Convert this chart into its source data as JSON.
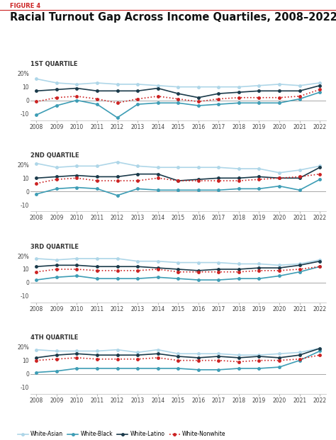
{
  "title": "Racial Turnout Gap Across Income Quartiles, 2008–2022",
  "figure_label": "FIGURE 4",
  "quartile_labels": [
    "1ST QUARTILE",
    "2ND QUARTILE",
    "3RD QUARTILE",
    "4TH QUARTILE"
  ],
  "years": [
    2008,
    2009,
    2010,
    2011,
    2012,
    2013,
    2014,
    2015,
    2016,
    2017,
    2018,
    2019,
    2020,
    2021,
    2022
  ],
  "series": {
    "White-Asian": {
      "color": "#aed6e8",
      "linestyle": "-",
      "marker": "o",
      "markersize": 2.5,
      "linewidth": 1.2,
      "q1": [
        16,
        13,
        12,
        13,
        12,
        12,
        11,
        10,
        10,
        10,
        10,
        11,
        12,
        11,
        13
      ],
      "q2": [
        21,
        18,
        19,
        19,
        22,
        19,
        18,
        18,
        18,
        18,
        17,
        17,
        14,
        16,
        19
      ],
      "q3": [
        18,
        17,
        18,
        18,
        18,
        16,
        16,
        15,
        15,
        15,
        14,
        14,
        13,
        14,
        17
      ],
      "q4": [
        18,
        17,
        17,
        17,
        18,
        16,
        18,
        15,
        15,
        15,
        14,
        14,
        15,
        16,
        19
      ]
    },
    "White-Black": {
      "color": "#3d9db5",
      "linestyle": "-",
      "marker": "o",
      "markersize": 2.5,
      "linewidth": 1.2,
      "q1": [
        -11,
        -4,
        0,
        -3,
        -13,
        -3,
        -2,
        -2,
        -4,
        -3,
        -2,
        -2,
        -2,
        1,
        6
      ],
      "q2": [
        -2,
        2,
        3,
        2,
        -3,
        2,
        1,
        1,
        1,
        1,
        2,
        2,
        4,
        1,
        9
      ],
      "q3": [
        2,
        4,
        5,
        3,
        3,
        3,
        4,
        3,
        2,
        2,
        3,
        3,
        5,
        8,
        12
      ],
      "q4": [
        1,
        2,
        4,
        4,
        4,
        4,
        4,
        4,
        3,
        3,
        4,
        4,
        5,
        10,
        17
      ]
    },
    "White-Latino": {
      "color": "#1a3a4a",
      "linestyle": "-",
      "marker": "o",
      "markersize": 2.5,
      "linewidth": 1.2,
      "q1": [
        7,
        8,
        9,
        7,
        7,
        7,
        9,
        5,
        2,
        5,
        6,
        7,
        7,
        7,
        11
      ],
      "q2": [
        10,
        11,
        12,
        11,
        11,
        13,
        13,
        8,
        9,
        10,
        10,
        11,
        10,
        10,
        18
      ],
      "q3": [
        12,
        13,
        13,
        12,
        12,
        12,
        11,
        10,
        9,
        10,
        10,
        11,
        11,
        13,
        16
      ],
      "q4": [
        12,
        14,
        15,
        14,
        14,
        14,
        15,
        13,
        12,
        13,
        12,
        13,
        12,
        14,
        19
      ]
    },
    "White-Nonwhite": {
      "color": "#cc2222",
      "linestyle": ":",
      "marker": "o",
      "markersize": 2.5,
      "linewidth": 1.2,
      "q1": [
        -1,
        2,
        3,
        1,
        -2,
        1,
        3,
        1,
        -1,
        1,
        2,
        2,
        2,
        3,
        8
      ],
      "q2": [
        6,
        9,
        10,
        8,
        8,
        8,
        10,
        8,
        8,
        8,
        8,
        9,
        10,
        11,
        13
      ],
      "q3": [
        8,
        10,
        10,
        9,
        9,
        9,
        10,
        8,
        8,
        8,
        8,
        9,
        9,
        10,
        12
      ],
      "q4": [
        10,
        11,
        12,
        11,
        11,
        11,
        12,
        10,
        10,
        10,
        9,
        10,
        10,
        11,
        14
      ]
    }
  },
  "ylim": [
    -15,
    24
  ],
  "yticks": [
    -10,
    0,
    10,
    20
  ],
  "background_color": "#ffffff",
  "figure_label_color": "#cc2222",
  "title_fontsize": 10.5,
  "subtitle_fontsize": 6,
  "tick_fontsize": 5.5,
  "figure_label_fontsize": 6
}
